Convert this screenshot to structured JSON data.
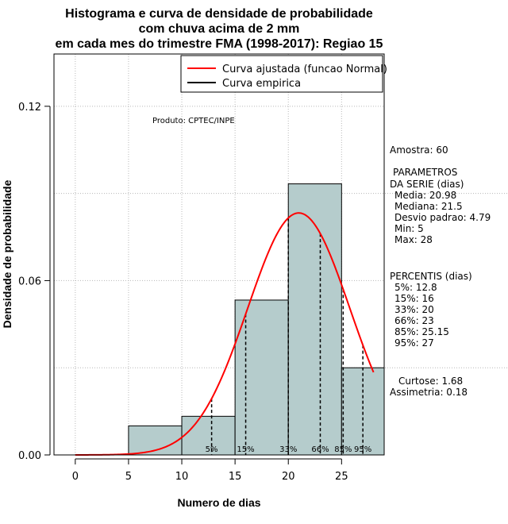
{
  "chart_data": {
    "type": "bar",
    "title": [
      "Histograma e curva de densidade de probabilidade",
      "com chuva acima de 2 mm",
      "em cada mes do trimestre FMA (1998-2017): Regiao 15"
    ],
    "xlabel": "Numero de dias",
    "ylabel": "Densidade de probabilidade",
    "xlim": [
      -2,
      29
    ],
    "ylim": [
      0,
      0.138
    ],
    "xticks": [
      0,
      5,
      10,
      15,
      20,
      25
    ],
    "yticks": [
      0.0,
      0.06,
      0.12
    ],
    "ytick_labels": [
      "0.00",
      "0.06",
      "0.12"
    ],
    "grid": true,
    "bar_color": "#b5cccc",
    "curve_color": "#ff0000",
    "bins": [
      {
        "from": 5,
        "to": 10,
        "density": 0.01
      },
      {
        "from": 10,
        "to": 15,
        "density": 0.0133
      },
      {
        "from": 15,
        "to": 20,
        "density": 0.0533
      },
      {
        "from": 20,
        "to": 25,
        "density": 0.0933
      },
      {
        "from": 25,
        "to": 30,
        "density": 0.03
      }
    ],
    "normal_fit": {
      "mean": 20.98,
      "sd": 4.79,
      "x_from": 0,
      "x_to": 28
    },
    "percentiles": [
      {
        "label": "5%",
        "value": 12.8
      },
      {
        "label": "15%",
        "value": 16
      },
      {
        "label": "33%",
        "value": 20
      },
      {
        "label": "66%",
        "value": 23
      },
      {
        "label": "85%",
        "value": 25.15
      },
      {
        "label": "95%",
        "value": 27
      }
    ],
    "legend": {
      "position": "top-right",
      "entries": [
        {
          "label": "Curva ajustada (funcao Normal)",
          "color": "#ff0000"
        },
        {
          "label": "Curva empirica",
          "color": "#000000"
        }
      ]
    },
    "annotation": "Produto: CPTEC/INPE",
    "stats": {
      "sample": "Amostra: 60",
      "params_title": [
        "PARAMETROS",
        "DA SERIE (dias)"
      ],
      "params": [
        "Media: 20.98",
        "Mediana: 21.5",
        "Desvio padrao: 4.79",
        "Min: 5",
        "Max: 28"
      ],
      "percentis_title": "PERCENTIS (dias)",
      "percentis": [
        "5%: 12.8",
        "15%: 16",
        "33%: 20",
        "66%: 23",
        "85%: 25.15",
        "95%: 27"
      ],
      "shape": [
        "Curtose: 1.68",
        "Assimetria: 0.18"
      ]
    }
  }
}
